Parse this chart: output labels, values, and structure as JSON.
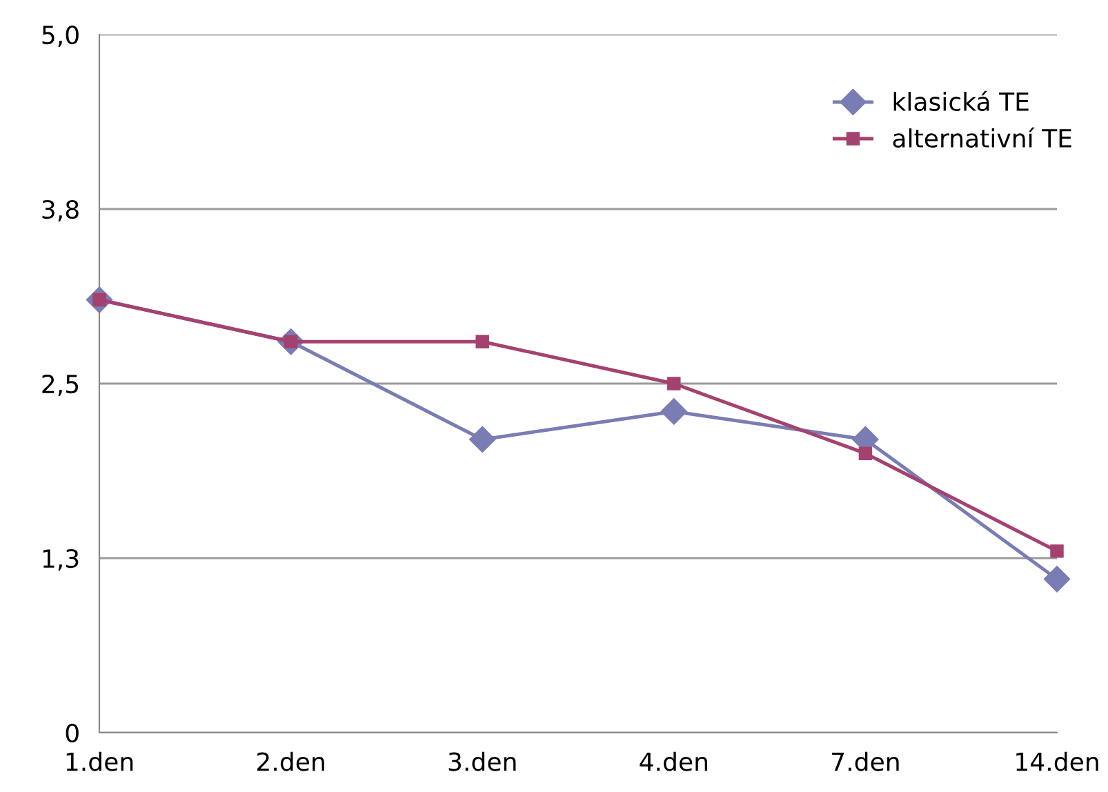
{
  "chart_data": {
    "type": "line",
    "categories": [
      "1.den",
      "2.den",
      "3.den",
      "4.den",
      "7.den",
      "14.den"
    ],
    "series": [
      {
        "name": "klasická TE",
        "color": "#7a7db3",
        "marker": "diamond",
        "values": [
          3.1,
          2.8,
          2.1,
          2.3,
          2.1,
          1.1
        ]
      },
      {
        "name": "alternativní TE",
        "color": "#a4426f",
        "marker": "square",
        "values": [
          3.1,
          2.8,
          2.8,
          2.5,
          2.0,
          1.3
        ]
      }
    ],
    "ylim": [
      0,
      5
    ],
    "yticks": [
      0,
      {
        "value": 1.25,
        "label": "1,3"
      },
      {
        "value": 2.5,
        "label": "2,5"
      },
      {
        "value": 3.75,
        "label": "3,8"
      },
      {
        "value": 5,
        "label": "5,0"
      }
    ],
    "grid": "y",
    "legend": "top right"
  }
}
